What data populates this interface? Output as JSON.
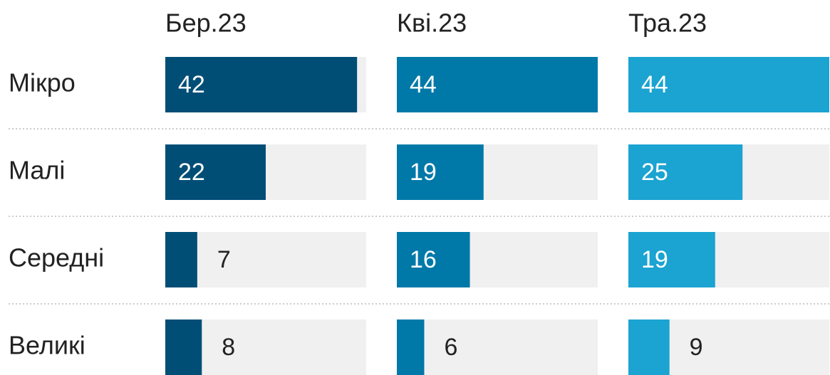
{
  "chart_data": {
    "type": "bar",
    "categories": [
      "Мікро",
      "Малі",
      "Середні",
      "Великі"
    ],
    "series": [
      {
        "name": "Бер.23",
        "color": "#004e76",
        "values": [
          42,
          22,
          7,
          8
        ]
      },
      {
        "name": "Кві.23",
        "color": "#0079a8",
        "values": [
          44,
          19,
          16,
          6
        ]
      },
      {
        "name": "Тра.23",
        "color": "#1ba3d1",
        "values": [
          44,
          25,
          19,
          9
        ]
      }
    ],
    "xlim": [
      0,
      44
    ]
  }
}
